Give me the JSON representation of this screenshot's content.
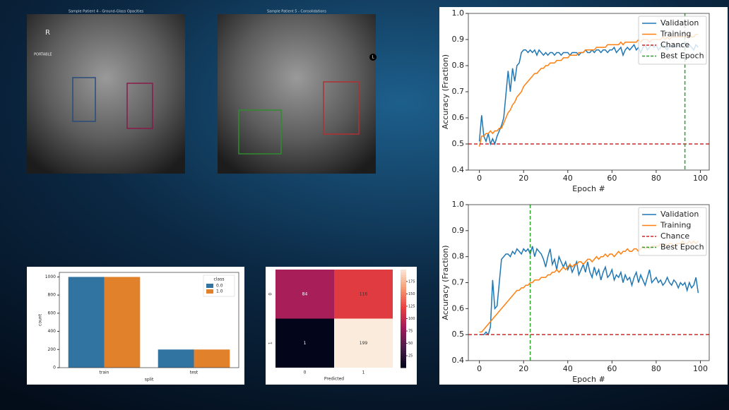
{
  "images": [
    {
      "title": "Sample Patient 4 - Ground-Glass Opacities",
      "labels": [
        "R",
        "PORTABLE"
      ]
    },
    {
      "title": "Sample Patient 5 - Consolidations",
      "labels": [
        "L"
      ]
    }
  ],
  "chart_data": [
    {
      "type": "bar",
      "xlabel": "split",
      "ylabel": "count",
      "categories": [
        "train",
        "test"
      ],
      "series": [
        {
          "name": "0.0",
          "color": "#3274a1",
          "values": [
            1000,
            200
          ]
        },
        {
          "name": "1.0",
          "color": "#e1812c",
          "values": [
            1000,
            200
          ]
        }
      ],
      "ylim": [
        0,
        1050
      ],
      "yticks": [
        0,
        200,
        400,
        600,
        800,
        1000
      ],
      "legend_title": "class",
      "legend": "upper right"
    },
    {
      "type": "heatmap",
      "xlabel": "Predicted",
      "x_categories": [
        "0",
        "1"
      ],
      "y_categories": [
        "0",
        "1"
      ],
      "values": [
        [
          84,
          116
        ],
        [
          1,
          199
        ]
      ],
      "colormap": [
        "#03051a",
        "#4c1d4b",
        "#a11a5b",
        "#e83f3f",
        "#f69c73",
        "#faebdd"
      ],
      "clim": [
        1,
        199
      ],
      "colorbar_ticks": [
        25,
        50,
        75,
        100,
        125,
        150,
        175
      ]
    },
    {
      "type": "line",
      "xlabel": "Epoch #",
      "ylabel": "Accuracy (Fraction)",
      "xlim": [
        -5,
        104
      ],
      "xticks": [
        0,
        20,
        40,
        60,
        80,
        100
      ],
      "ylim": [
        0.4,
        1.0
      ],
      "yticks": [
        0.4,
        0.5,
        0.6,
        0.7,
        0.8,
        0.9,
        {
          "value": 1.0,
          "label": "1.0"
        }
      ],
      "legend": "upper right",
      "x": [
        0,
        1,
        2,
        3,
        4,
        5,
        6,
        7,
        8,
        9,
        10,
        11,
        12,
        13,
        14,
        15,
        16,
        17,
        18,
        19,
        20,
        21,
        22,
        23,
        24,
        25,
        26,
        27,
        28,
        29,
        30,
        31,
        32,
        33,
        34,
        35,
        36,
        37,
        38,
        39,
        40,
        41,
        42,
        43,
        44,
        45,
        46,
        47,
        48,
        49,
        50,
        51,
        52,
        53,
        54,
        55,
        56,
        57,
        58,
        59,
        60,
        61,
        62,
        63,
        64,
        65,
        66,
        67,
        68,
        69,
        70,
        71,
        72,
        73,
        74,
        75,
        76,
        77,
        78,
        79,
        80,
        81,
        82,
        83,
        84,
        85,
        86,
        87,
        88,
        89,
        90,
        91,
        92,
        93,
        94,
        95,
        96,
        97,
        98,
        99
      ],
      "series": [
        {
          "name": "Validation",
          "color": "#1f77b4",
          "values": [
            0.51,
            0.61,
            0.53,
            0.51,
            0.54,
            0.5,
            0.52,
            0.5,
            0.53,
            0.55,
            0.57,
            0.6,
            0.69,
            0.78,
            0.7,
            0.79,
            0.74,
            0.8,
            0.81,
            0.85,
            0.86,
            0.86,
            0.85,
            0.86,
            0.85,
            0.86,
            0.84,
            0.86,
            0.85,
            0.84,
            0.85,
            0.84,
            0.85,
            0.85,
            0.84,
            0.85,
            0.85,
            0.84,
            0.85,
            0.85,
            0.85,
            0.84,
            0.85,
            0.85,
            0.85,
            0.84,
            0.85,
            0.85,
            0.86,
            0.85,
            0.85,
            0.86,
            0.85,
            0.86,
            0.86,
            0.85,
            0.86,
            0.86,
            0.85,
            0.86,
            0.86,
            0.87,
            0.85,
            0.86,
            0.87,
            0.84,
            0.86,
            0.87,
            0.86,
            0.87,
            0.88,
            0.86,
            0.87,
            0.85,
            0.87,
            0.88,
            0.86,
            0.87,
            0.88,
            0.87,
            0.88,
            0.86,
            0.87,
            0.88,
            0.87,
            0.86,
            0.88,
            0.87,
            0.88,
            0.87,
            0.88,
            0.87,
            0.88,
            0.89,
            0.87,
            0.88,
            0.87,
            0.86,
            0.88,
            0.87
          ]
        },
        {
          "name": "Training",
          "color": "#ff7f0e",
          "values": [
            0.49,
            0.53,
            0.53,
            0.54,
            0.54,
            0.55,
            0.54,
            0.55,
            0.55,
            0.56,
            0.56,
            0.58,
            0.6,
            0.62,
            0.63,
            0.65,
            0.66,
            0.68,
            0.69,
            0.7,
            0.72,
            0.73,
            0.74,
            0.75,
            0.76,
            0.77,
            0.77,
            0.78,
            0.79,
            0.79,
            0.8,
            0.8,
            0.81,
            0.81,
            0.81,
            0.82,
            0.82,
            0.82,
            0.83,
            0.83,
            0.83,
            0.84,
            0.84,
            0.84,
            0.84,
            0.85,
            0.85,
            0.85,
            0.86,
            0.86,
            0.86,
            0.86,
            0.86,
            0.87,
            0.87,
            0.87,
            0.87,
            0.87,
            0.88,
            0.88,
            0.88,
            0.88,
            0.88,
            0.88,
            0.89,
            0.88,
            0.89,
            0.89,
            0.89,
            0.89,
            0.89,
            0.89,
            0.9,
            0.89,
            0.9,
            0.9,
            0.9,
            0.89,
            0.9,
            0.9,
            0.9,
            0.9,
            0.9,
            0.91,
            0.9,
            0.91,
            0.9,
            0.91,
            0.91,
            0.91,
            0.91,
            0.91,
            0.91,
            0.91,
            0.91,
            0.92,
            0.91,
            0.91,
            0.92,
            0.92
          ]
        }
      ],
      "hlines": [
        {
          "name": "Chance",
          "color": "#d62728",
          "value": 0.5
        }
      ],
      "vlines": [
        {
          "name": "Best Epoch",
          "color": "#2ca02c",
          "value": 93
        }
      ]
    },
    {
      "type": "line",
      "xlabel": "Epoch #",
      "ylabel": "Accuracy (Fraction)",
      "xlim": [
        -5,
        104
      ],
      "xticks": [
        0,
        20,
        40,
        60,
        80,
        100
      ],
      "ylim": [
        0.4,
        1.0
      ],
      "yticks": [
        0.4,
        0.5,
        0.6,
        0.7,
        0.8,
        0.9,
        {
          "value": 1.0,
          "label": "1.0"
        }
      ],
      "legend": "upper right",
      "x": [
        0,
        1,
        2,
        3,
        4,
        5,
        6,
        7,
        8,
        9,
        10,
        11,
        12,
        13,
        14,
        15,
        16,
        17,
        18,
        19,
        20,
        21,
        22,
        23,
        24,
        25,
        26,
        27,
        28,
        29,
        30,
        31,
        32,
        33,
        34,
        35,
        36,
        37,
        38,
        39,
        40,
        41,
        42,
        43,
        44,
        45,
        46,
        47,
        48,
        49,
        50,
        51,
        52,
        53,
        54,
        55,
        56,
        57,
        58,
        59,
        60,
        61,
        62,
        63,
        64,
        65,
        66,
        67,
        68,
        69,
        70,
        71,
        72,
        73,
        74,
        75,
        76,
        77,
        78,
        79,
        80,
        81,
        82,
        83,
        84,
        85,
        86,
        87,
        88,
        89,
        90,
        91,
        92,
        93,
        94,
        95,
        96,
        97,
        98,
        99
      ],
      "series": [
        {
          "name": "Validation",
          "color": "#1f77b4",
          "values": [
            0.5,
            0.5,
            0.5,
            0.51,
            0.5,
            0.53,
            0.71,
            0.6,
            0.61,
            0.7,
            0.79,
            0.8,
            0.81,
            0.81,
            0.8,
            0.82,
            0.81,
            0.83,
            0.82,
            0.81,
            0.83,
            0.82,
            0.83,
            0.81,
            0.84,
            0.8,
            0.83,
            0.82,
            0.81,
            0.79,
            0.76,
            0.8,
            0.83,
            0.77,
            0.79,
            0.75,
            0.8,
            0.78,
            0.76,
            0.78,
            0.75,
            0.77,
            0.74,
            0.76,
            0.78,
            0.73,
            0.75,
            0.77,
            0.74,
            0.78,
            0.74,
            0.72,
            0.76,
            0.73,
            0.75,
            0.71,
            0.74,
            0.76,
            0.72,
            0.73,
            0.75,
            0.71,
            0.73,
            0.72,
            0.74,
            0.7,
            0.73,
            0.71,
            0.72,
            0.69,
            0.72,
            0.74,
            0.7,
            0.73,
            0.71,
            0.69,
            0.72,
            0.75,
            0.7,
            0.71,
            0.72,
            0.7,
            0.71,
            0.69,
            0.7,
            0.72,
            0.7,
            0.69,
            0.71,
            0.7,
            0.68,
            0.7,
            0.69,
            0.7,
            0.67,
            0.7,
            0.68,
            0.69,
            0.72,
            0.66
          ]
        },
        {
          "name": "Training",
          "color": "#ff7f0e",
          "values": [
            0.51,
            0.51,
            0.52,
            0.53,
            0.54,
            0.55,
            0.56,
            0.57,
            0.58,
            0.59,
            0.6,
            0.61,
            0.62,
            0.63,
            0.64,
            0.65,
            0.66,
            0.67,
            0.67,
            0.68,
            0.68,
            0.69,
            0.69,
            0.7,
            0.7,
            0.71,
            0.71,
            0.71,
            0.72,
            0.72,
            0.72,
            0.73,
            0.73,
            0.74,
            0.74,
            0.75,
            0.74,
            0.75,
            0.76,
            0.75,
            0.76,
            0.77,
            0.76,
            0.77,
            0.77,
            0.78,
            0.78,
            0.77,
            0.78,
            0.79,
            0.79,
            0.78,
            0.79,
            0.8,
            0.79,
            0.8,
            0.8,
            0.81,
            0.8,
            0.81,
            0.81,
            0.8,
            0.81,
            0.82,
            0.81,
            0.82,
            0.82,
            0.83,
            0.82,
            0.82,
            0.83,
            0.83,
            0.82,
            0.83,
            0.84,
            0.83,
            0.84,
            0.83,
            0.84,
            0.84,
            0.84,
            0.84,
            0.85,
            0.84,
            0.85,
            0.84,
            0.85,
            0.85,
            0.84,
            0.85,
            0.85,
            0.85,
            0.86,
            0.85,
            0.85,
            0.86,
            0.85,
            0.86,
            0.85,
            0.86
          ]
        }
      ],
      "hlines": [
        {
          "name": "Chance",
          "color": "#d62728",
          "value": 0.5
        }
      ],
      "vlines": [
        {
          "name": "Best Epoch",
          "color": "#2ca02c",
          "value": 23
        }
      ]
    }
  ]
}
